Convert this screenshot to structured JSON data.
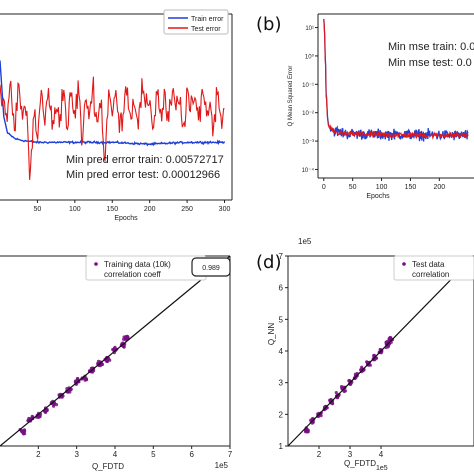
{
  "chart_data": [
    {
      "type": "line",
      "panel_label": "",
      "xlabel": "Epochs",
      "ylabel": "",
      "xlim": [
        0,
        310
      ],
      "ylim": [
        0,
        1
      ],
      "x_ticks": [
        "50",
        "100",
        "150",
        "200",
        "250",
        "300"
      ],
      "x_tick_values": [
        50,
        100,
        150,
        200,
        250,
        300
      ],
      "legend_position": "top-right",
      "series": [
        {
          "name": "Train error",
          "color": "#1f3fd6",
          "x": [
            0,
            5,
            10,
            20,
            30,
            50,
            100,
            150,
            200,
            250,
            300
          ],
          "values": [
            0.75,
            0.45,
            0.36,
            0.33,
            0.32,
            0.31,
            0.31,
            0.31,
            0.3,
            0.31,
            0.31
          ]
        },
        {
          "name": "Test error",
          "color": "#e01818",
          "x": [
            0,
            5,
            10,
            15,
            20,
            25,
            30,
            35,
            40,
            45,
            50,
            55,
            60,
            65,
            70,
            75,
            80,
            85,
            90,
            95,
            100,
            105,
            110,
            115,
            120,
            125,
            130,
            135,
            140,
            145,
            150,
            155,
            160,
            165,
            170,
            175,
            180,
            185,
            190,
            195,
            200,
            205,
            210,
            215,
            220,
            225,
            230,
            235,
            240,
            245,
            250,
            255,
            260,
            265,
            270,
            275,
            280,
            285,
            290,
            295,
            300
          ],
          "values": [
            0.62,
            0.55,
            0.46,
            0.58,
            0.35,
            0.63,
            0.42,
            0.55,
            0.08,
            0.5,
            0.3,
            0.6,
            0.4,
            0.62,
            0.36,
            0.52,
            0.45,
            0.6,
            0.38,
            0.57,
            0.44,
            0.62,
            0.3,
            0.54,
            0.48,
            0.61,
            0.4,
            0.56,
            0.18,
            0.6,
            0.45,
            0.58,
            0.37,
            0.52,
            0.62,
            0.43,
            0.56,
            0.41,
            0.6,
            0.47,
            0.55,
            0.38,
            0.61,
            0.44,
            0.57,
            0.4,
            0.59,
            0.48,
            0.53,
            0.36,
            0.6,
            0.45,
            0.56,
            0.42,
            0.62,
            0.47,
            0.52,
            0.39,
            0.58,
            0.45,
            0.5
          ]
        }
      ],
      "annotations": [
        "Min pred error train: 0.00572717",
        "Min pred error test: 0.00012966"
      ]
    },
    {
      "type": "line",
      "panel_label": "(b)",
      "xlabel": "Epochs",
      "ylabel": "Q Mean Squared Error",
      "xlim": [
        -10,
        260
      ],
      "y_scale": "log",
      "ylim": [
        5e-05,
        30
      ],
      "x_ticks": [
        "0",
        "50",
        "100",
        "150",
        "200"
      ],
      "x_tick_values": [
        0,
        50,
        100,
        150,
        200
      ],
      "y_ticks": [
        "10⁻⁴",
        "10⁻³",
        "10⁻²",
        "10⁻¹",
        "10⁰",
        "10¹"
      ],
      "y_tick_values": [
        0.0001,
        0.001,
        0.01,
        0.1,
        1,
        10
      ],
      "series": [
        {
          "name": "",
          "color": "#1f3fd6",
          "x": [
            0,
            2,
            4,
            6,
            8,
            10,
            15,
            20,
            30,
            40,
            60,
            80,
            100,
            150,
            200,
            250
          ],
          "values": [
            20,
            1.2,
            0.05,
            0.008,
            0.004,
            0.003,
            0.0025,
            0.0022,
            0.002,
            0.0018,
            0.0018,
            0.0017,
            0.0017,
            0.0017,
            0.0016,
            0.0016
          ]
        },
        {
          "name": "",
          "color": "#e01818",
          "x": [
            0,
            2,
            4,
            6,
            8,
            10,
            15,
            20,
            30,
            40,
            60,
            80,
            100,
            150,
            200,
            250
          ],
          "values": [
            20,
            1.0,
            0.04,
            0.007,
            0.0035,
            0.0028,
            0.0024,
            0.0021,
            0.0019,
            0.0018,
            0.0018,
            0.0017,
            0.0017,
            0.0016,
            0.0016,
            0.0016
          ]
        }
      ],
      "annotations": [
        "Min mse train: 0.0",
        "Min mse test: 0.0"
      ]
    },
    {
      "type": "scatter",
      "panel_label": "",
      "xlabel": "Q_FDTD",
      "ylabel": "",
      "xlim": [
        1,
        7
      ],
      "ylim": [
        1,
        7
      ],
      "x_ticks": [
        "2",
        "3",
        "4",
        "5",
        "6",
        "7"
      ],
      "x_tick_values": [
        2,
        3,
        4,
        5,
        6,
        7
      ],
      "x_offset": "1e5",
      "legend_position": "top-right",
      "legend": [
        "Training data (10k)",
        "correlation coeff"
      ],
      "correlation_box": "0.989",
      "point_color": "#7a0d86",
      "diagonal": "y = x",
      "points": [
        [
          1.6,
          1.45
        ],
        [
          1.8,
          1.85
        ],
        [
          2.0,
          1.95
        ],
        [
          2.2,
          2.1
        ],
        [
          2.4,
          2.35
        ],
        [
          2.6,
          2.6
        ],
        [
          2.8,
          2.75
        ],
        [
          3.0,
          3.05
        ],
        [
          3.2,
          3.15
        ],
        [
          3.4,
          3.4
        ],
        [
          3.6,
          3.6
        ],
        [
          3.8,
          3.75
        ],
        [
          4.0,
          4.05
        ],
        [
          4.2,
          4.2
        ],
        [
          4.3,
          4.4
        ]
      ]
    },
    {
      "type": "scatter",
      "panel_label": "(d)",
      "xlabel": "Q_FDTD",
      "ylabel": "Q_NN",
      "xlim": [
        1,
        7
      ],
      "ylim": [
        1,
        7
      ],
      "x_ticks": [
        "2",
        "3",
        "4"
      ],
      "x_tick_values": [
        2,
        3,
        4
      ],
      "y_ticks": [
        "1",
        "2",
        "3",
        "4",
        "5",
        "6",
        "7"
      ],
      "y_tick_values": [
        1,
        2,
        3,
        4,
        5,
        6,
        7
      ],
      "y_offset": "1e5",
      "x_offset": "1e5",
      "legend_position": "top-right",
      "legend": [
        "Test data",
        "correlation"
      ],
      "point_color": "#7a0d86",
      "diagonal": "y = x",
      "points": [
        [
          1.6,
          1.5
        ],
        [
          1.8,
          1.8
        ],
        [
          2.0,
          2.0
        ],
        [
          2.2,
          2.2
        ],
        [
          2.4,
          2.4
        ],
        [
          2.6,
          2.6
        ],
        [
          2.8,
          2.8
        ],
        [
          3.0,
          3.0
        ],
        [
          3.2,
          3.2
        ],
        [
          3.4,
          3.4
        ],
        [
          3.6,
          3.6
        ],
        [
          3.8,
          3.8
        ],
        [
          4.0,
          4.0
        ],
        [
          4.2,
          4.2
        ],
        [
          4.3,
          4.35
        ]
      ]
    }
  ]
}
